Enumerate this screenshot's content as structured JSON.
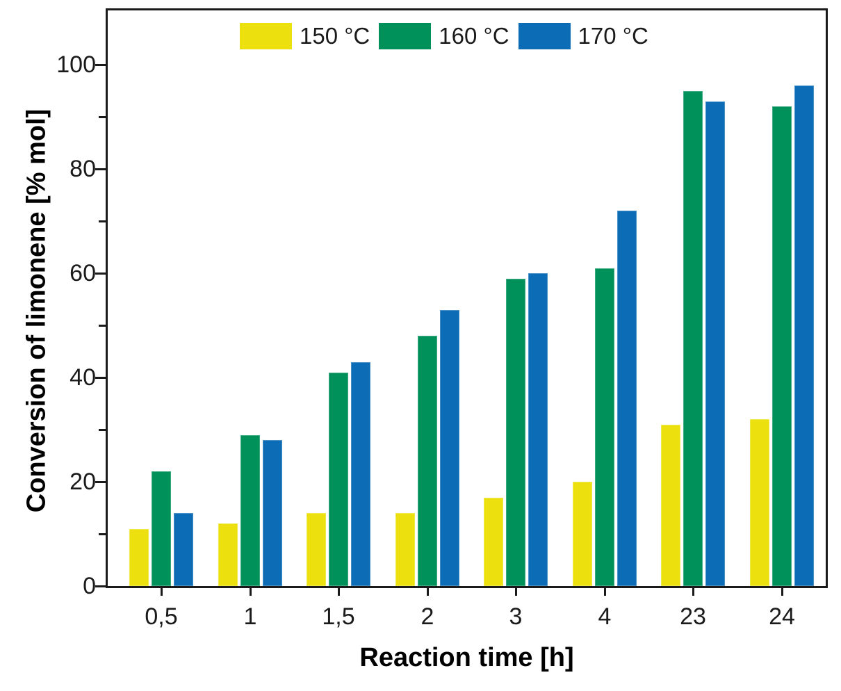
{
  "chart_data": {
    "type": "bar",
    "title": "",
    "xlabel": "Reaction time [h]",
    "ylabel": "Conversion of limonene [% mol]",
    "categories": [
      "0,5",
      "1",
      "1,5",
      "2",
      "3",
      "4",
      "23",
      "24"
    ],
    "series": [
      {
        "name": "150 °C",
        "color": "#EDE00F",
        "values": [
          11,
          12,
          14,
          14,
          17,
          20,
          31,
          32
        ]
      },
      {
        "name": "160 °C",
        "color": "#00915A",
        "values": [
          22,
          29,
          41,
          48,
          59,
          61,
          95,
          92
        ]
      },
      {
        "name": "170 °C",
        "color": "#0C6CB5",
        "values": [
          14,
          28,
          43,
          53,
          60,
          72,
          93,
          96
        ]
      }
    ],
    "ylim": [
      0,
      110
    ],
    "y_major_ticks": [
      0,
      20,
      40,
      60,
      80,
      100
    ],
    "y_minor_ticks": [
      10,
      30,
      50,
      70,
      90
    ],
    "grid": false,
    "legend_position": "top-inside",
    "axis_color": "#1a1a1a",
    "background_color": "#ffffff"
  }
}
